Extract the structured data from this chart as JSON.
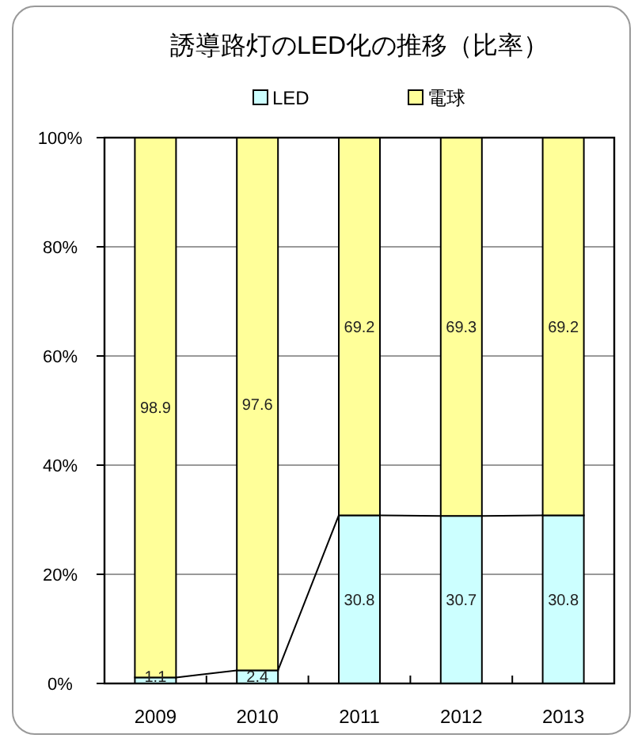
{
  "chart_data": {
    "type": "bar",
    "stacked": true,
    "title": "誘導路灯のLED化の推移（比率）",
    "categories": [
      "2009",
      "2010",
      "2011",
      "2012",
      "2013"
    ],
    "series": [
      {
        "name": "LED",
        "color": "#ccffff",
        "values": [
          1.1,
          2.4,
          30.8,
          30.7,
          30.8
        ]
      },
      {
        "name": "電球",
        "color": "#ffff99",
        "values": [
          98.9,
          97.6,
          69.2,
          69.3,
          69.2
        ]
      }
    ],
    "ylim": [
      0,
      100
    ],
    "yticks": [
      {
        "value": 0,
        "label": "0%"
      },
      {
        "value": 20,
        "label": "20%"
      },
      {
        "value": 40,
        "label": "40%"
      },
      {
        "value": 60,
        "label": "60%"
      },
      {
        "value": 80,
        "label": "80%"
      },
      {
        "value": 100,
        "label": "100%"
      }
    ],
    "grid": "y",
    "legend": "top",
    "data_labels": true
  }
}
